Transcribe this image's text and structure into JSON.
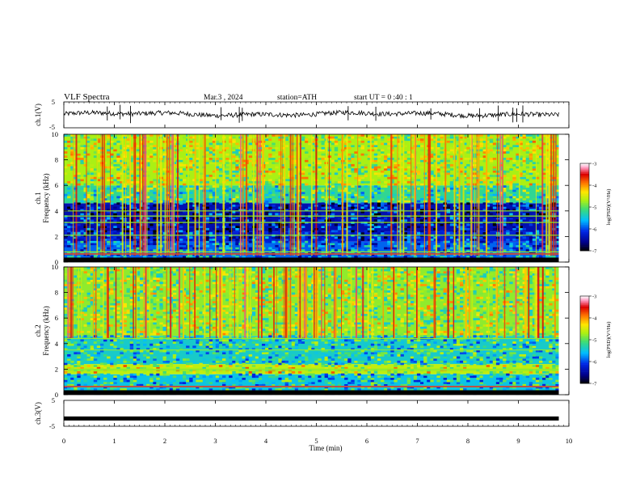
{
  "header": {
    "title": "VLF  Spectra",
    "date": "Mar.3   , 2024",
    "station": "station=ATH",
    "start_ut": "start  UT  =    0  :40 : 1"
  },
  "chart_data": [
    {
      "type": "line",
      "panel": "ch1-waveform",
      "ylabel": "ch.1(V)",
      "yticks": [
        "5",
        "-5"
      ],
      "ylim": [
        -5,
        5
      ],
      "x_range_min": [
        0,
        9.8
      ],
      "note_level_v": 0.3
    },
    {
      "type": "heatmap",
      "panel": "ch1-spectrogram",
      "ylabel_channel": "ch.1",
      "ylabel": "Frequency  (kHz)",
      "yticks": [
        "0",
        "2",
        "4",
        "6",
        "8",
        "10"
      ],
      "ylim": [
        0,
        10
      ],
      "xlim": [
        0,
        10
      ],
      "data_x_max": 9.8,
      "colorbar": {
        "label": "log(PSD)(V²/Hz)",
        "ticks": [
          "-3",
          "-4",
          "-5",
          "-6",
          "-7"
        ],
        "range": [
          -7,
          -3
        ]
      },
      "bands_khz": [
        {
          "from": 0,
          "to": 1.6,
          "level": -5.9
        },
        {
          "from": 1.6,
          "to": 2.4,
          "level": -6.2
        },
        {
          "from": 2.4,
          "to": 4.6,
          "level": -6.4
        },
        {
          "from": 4.6,
          "to": 6.0,
          "level": -5.2
        },
        {
          "from": 6.0,
          "to": 10.0,
          "level": -4.7
        }
      ],
      "lines_khz": [
        0.8,
        2.1,
        3.1,
        3.6,
        4.0
      ]
    },
    {
      "type": "heatmap",
      "panel": "ch2-spectrogram",
      "ylabel_channel": "ch.2",
      "ylabel": "Frequency  (kHz)",
      "yticks": [
        "0",
        "2",
        "4",
        "6",
        "8",
        "10"
      ],
      "ylim": [
        0,
        10
      ],
      "xlim": [
        0,
        10
      ],
      "data_x_max": 9.8,
      "colorbar": {
        "label": "log(PSD)(V²/Hz)",
        "ticks": [
          "-3",
          "-4",
          "-5",
          "-6",
          "-7"
        ],
        "range": [
          -7,
          -3
        ]
      },
      "bands_khz": [
        {
          "from": 0,
          "to": 1.6,
          "level": -5.5
        },
        {
          "from": 1.6,
          "to": 2.4,
          "level": -4.6
        },
        {
          "from": 2.4,
          "to": 4.6,
          "level": -5.4
        },
        {
          "from": 4.6,
          "to": 10.0,
          "level": -4.8
        }
      ],
      "lines_khz": [
        1.9,
        2.0,
        3.5,
        4.4
      ]
    },
    {
      "type": "line",
      "panel": "ch3-waveform",
      "ylabel": "ch.3(V)",
      "yticks": [
        "5",
        "-5"
      ],
      "ylim": [
        -5,
        5
      ],
      "level_v": -2.0,
      "xlabel": "Time  (min)",
      "xticks": [
        "0",
        "1",
        "2",
        "3",
        "4",
        "5",
        "6",
        "7",
        "8",
        "9",
        "10"
      ],
      "xlim": [
        0,
        10
      ]
    }
  ]
}
